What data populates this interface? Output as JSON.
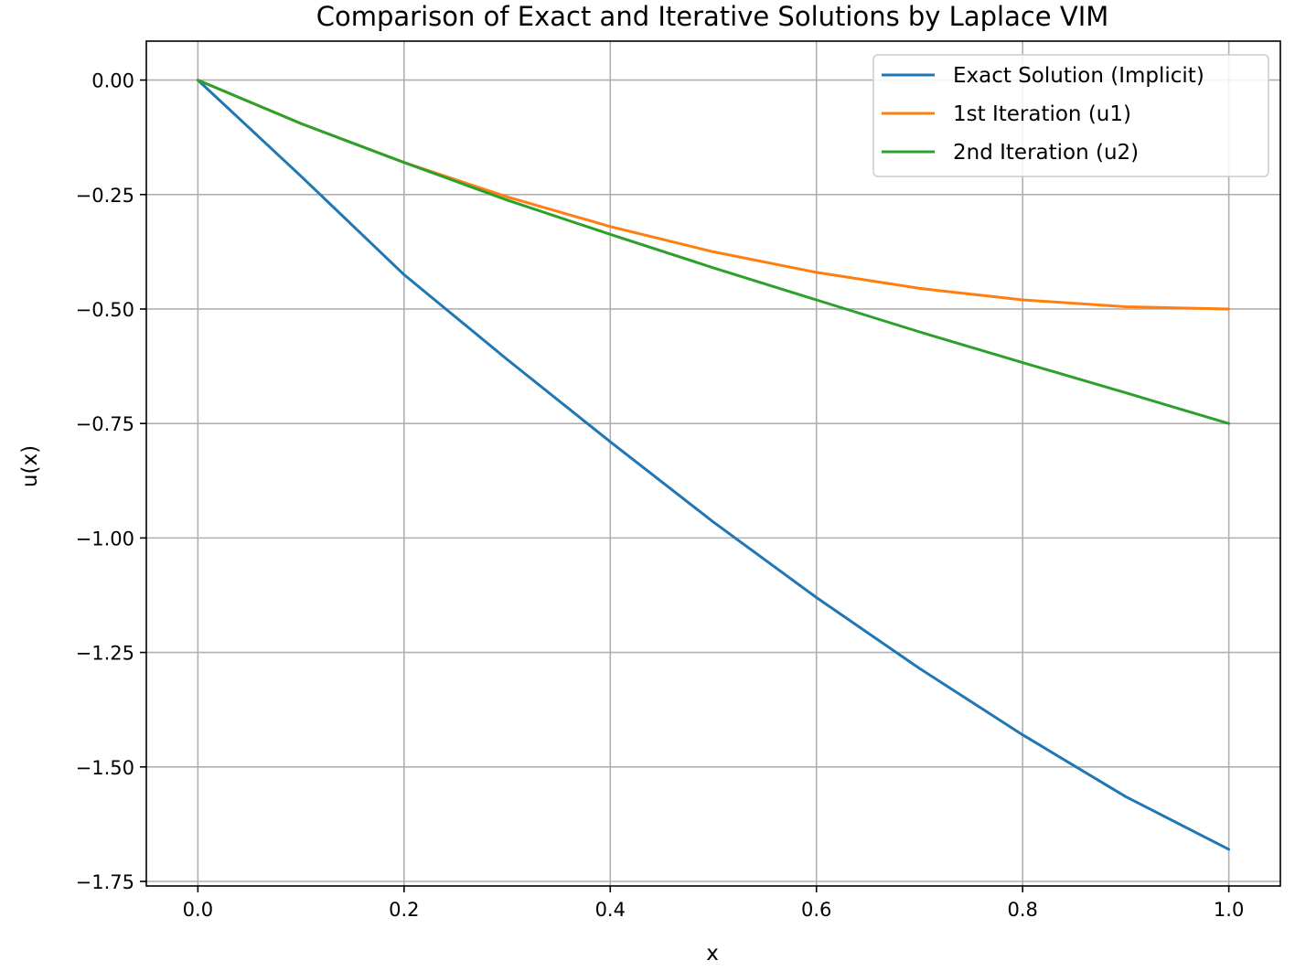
{
  "chart_data": {
    "type": "line",
    "title": "Comparison of Exact and Iterative Solutions by Laplace VIM",
    "xlabel": "x",
    "ylabel": "u(x)",
    "xlim": [
      -0.05,
      1.05
    ],
    "ylim": [
      -1.76,
      0.085
    ],
    "xticks": [
      0.0,
      0.2,
      0.4,
      0.6,
      0.8,
      1.0
    ],
    "xtick_labels": [
      "0.0",
      "0.2",
      "0.4",
      "0.6",
      "0.8",
      "1.0"
    ],
    "yticks": [
      0.0,
      -0.25,
      -0.5,
      -0.75,
      -1.0,
      -1.25,
      -1.5,
      -1.75
    ],
    "ytick_labels": [
      "0.00",
      "−0.25",
      "−0.50",
      "−0.75",
      "−1.00",
      "−1.25",
      "−1.50",
      "−1.75"
    ],
    "grid": true,
    "legend_position": "top-right",
    "x": [
      0.0,
      0.1,
      0.2,
      0.3,
      0.4,
      0.5,
      0.6,
      0.7,
      0.8,
      0.9,
      1.0
    ],
    "series": [
      {
        "name": "Exact Solution (Implicit)",
        "color": "#1f77b4",
        "values": [
          0.0,
          -0.21,
          -0.425,
          -0.61,
          -0.79,
          -0.965,
          -1.13,
          -1.285,
          -1.43,
          -1.565,
          -1.68
        ]
      },
      {
        "name": "1st Iteration (u1)",
        "color": "#ff7f0e",
        "values": [
          0.0,
          -0.095,
          -0.18,
          -0.255,
          -0.32,
          -0.375,
          -0.42,
          -0.455,
          -0.48,
          -0.495,
          -0.5
        ]
      },
      {
        "name": "2nd Iteration (u2)",
        "color": "#2ca02c",
        "values": [
          0.0,
          -0.095,
          -0.18,
          -0.262,
          -0.337,
          -0.41,
          -0.48,
          -0.55,
          -0.617,
          -0.683,
          -0.75
        ]
      }
    ]
  }
}
